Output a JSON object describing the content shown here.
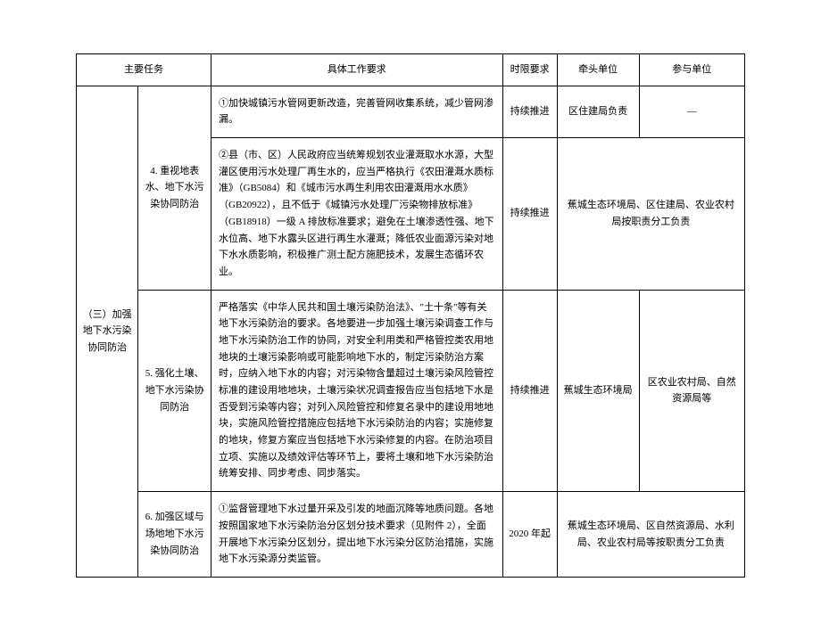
{
  "headers": {
    "mainTask": "主要任务",
    "detail": "具体工作要求",
    "timeReq": "时限要求",
    "leadUnit": "牵头单位",
    "partUnit": "参与单位"
  },
  "category": "（三）加强地下水污染协同防治",
  "rows": [
    {
      "task": "4. 重视地表水、地下水污染协同防治",
      "details": [
        {
          "text": "①加快城镇污水管网更新改造，完善管网收集系统，减少管网渗漏。",
          "time": "持续推进",
          "lead": "区住建局负责",
          "part": "—",
          "mergeLeadPart": false
        },
        {
          "text": "②县（市、区）人民政府应当统筹规划农业灌溉取水水源，大型灌区使用污水处理厂再生水的，应当严格执行《农田灌溉水质标准》（GB5084）和《城市污水再生利用农田灌溉用水水质》（GB20922），且不低于《城镇污水处理厂污染物排放标准》（GB18918）一级 A 排放标准要求；避免在土壤渗透性强、地下水位高、地下水露头区进行再生水灌溉；降低农业面源污染对地下水水质影响，积极推广测土配方施肥技术，发展生态循环农业。",
          "time": "持续推进",
          "lead": "蕉城生态环境局、区住建局、农业农村局按职责分工负责",
          "part": "",
          "mergeLeadPart": true
        }
      ]
    },
    {
      "task": "5. 强化土壤、地下水污染协同防治",
      "details": [
        {
          "text": "严格落实《中华人民共和国土壤污染防治法》、\"土十条\"等有关地下水污染防治的要求。各地要进一步加强土壤污染调查工作与地下水污染防治工作的协同，对安全利用类和严格管控类农用地地块的土壤污染影响或可能影响地下水的，制定污染防治方案时，应纳入地下水的内容；对污染物含量超过土壤污染风险管控标准的建设用地地块，土壤污染状况调查报告应当包括地下水是否受到污染等内容；对列入风险管控和修复名录中的建设用地地块，实施风险管控措施应包括地下水污染防治的内容；实施修复的地块，修复方案应当包括地下水污染修复的内容。在防治项目立项、实施以及绩效评估等环节上，要将土壤和地下水污染防治统筹安排、同步考虑、同步落实。",
          "time": "持续推进",
          "lead": "蕉城生态环境局",
          "part": "区农业农村局、自然资源局等",
          "mergeLeadPart": false
        }
      ]
    },
    {
      "task": "6. 加强区域与场地地下水污染协同防治",
      "details": [
        {
          "text": "①监督管理地下水过量开采及引发的地面沉降等地质问题。各地按照国家地下水污染防治分区划分技术要求（见附件 2），全面开展地下水污染分区划分，提出地下水污染分区防治措施，实施地下水污染源分类监管。",
          "time": "2020 年起",
          "lead": "蕉城生态环境局、区自然资源局、水利局、农业农村局等按职责分工负责",
          "part": "",
          "mergeLeadPart": true
        }
      ]
    }
  ]
}
